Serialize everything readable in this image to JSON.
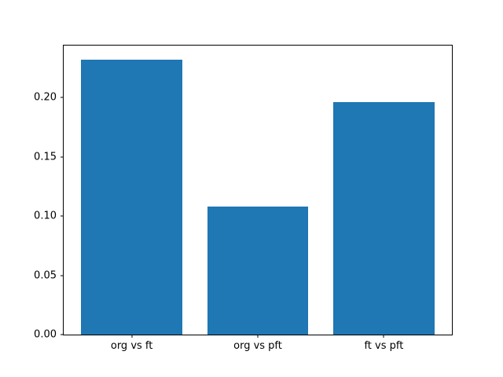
{
  "figure": {
    "background": "#ffffff",
    "bar_color": "#1f77b4",
    "spine_color": "#000000"
  },
  "chart_data": {
    "type": "bar",
    "categories": [
      "org vs ft",
      "org vs pft",
      "ft vs pft"
    ],
    "values": [
      0.232,
      0.108,
      0.196
    ],
    "title": "",
    "xlabel": "",
    "ylabel": "",
    "ylim": [
      0,
      0.244
    ],
    "yticks": [
      0.0,
      0.05,
      0.1,
      0.15,
      0.2
    ],
    "ytick_labels": [
      "0.00",
      "0.05",
      "0.10",
      "0.15",
      "0.20"
    ],
    "bar_width_fraction": 0.8,
    "grid": false,
    "legend_position": "none"
  }
}
